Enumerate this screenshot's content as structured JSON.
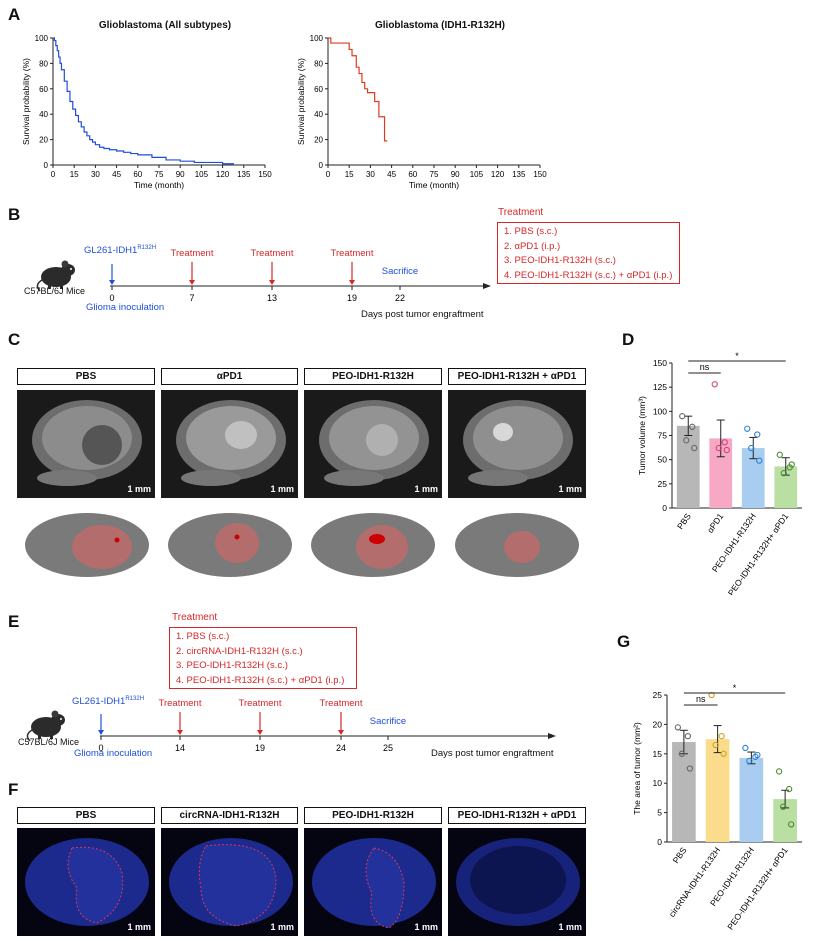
{
  "panels": {
    "A": "A",
    "B": "B",
    "C": "C",
    "D": "D",
    "E": "E",
    "F": "F",
    "G": "G"
  },
  "panel_A": {
    "left": {
      "title": "Glioblastoma (All subtypes)",
      "xlabel": "Time (month)",
      "ylabel": "Survival probability (%)"
    },
    "right": {
      "title": "Glioblastoma (IDH1-R132H)",
      "xlabel": "Time (month)",
      "ylabel": "Survival probability (%)"
    }
  },
  "panel_B": {
    "inoculation": "GL261-IDH1",
    "inoculation_sup": "R132H",
    "inoculation_label": "Glioma inoculation",
    "mouse_label": "C57BL/6J Mice",
    "treatment_label": "Treatment",
    "sacrifice_label": "Sacrifice",
    "ticks": [
      "0",
      "7",
      "13",
      "19",
      "22"
    ],
    "axis_label": "Days post tumor engraftment",
    "legend_title": "Treatment",
    "legend": [
      "1. PBS (s.c.)",
      "2. αPD1 (i.p.)",
      "3. PEO-IDH1-R132H (s.c.)",
      "4. PEO-IDH1-R132H (s.c.) + αPD1 (i.p.)"
    ]
  },
  "panel_C": {
    "groups": [
      "PBS",
      "αPD1",
      "PEO-IDH1-R132H",
      "PEO-IDH1-R132H + αPD1"
    ],
    "scale": "1 mm"
  },
  "panel_E": {
    "inoculation": "GL261-IDH1",
    "inoculation_sup": "R132H",
    "inoculation_label": "Glioma inoculation",
    "mouse_label": "C57BL/6J Mice",
    "treatment_label": "Treatment",
    "sacrifice_label": "Sacrifice",
    "ticks": [
      "0",
      "14",
      "19",
      "24",
      "25"
    ],
    "axis_label": "Days post tumor engraftment",
    "legend_title": "Treatment",
    "legend": [
      "1. PBS (s.c.)",
      "2. circRNA-IDH1-R132H (s.c.)",
      "3. PEO-IDH1-R132H (s.c.)",
      "4. PEO-IDH1-R132H (s.c.) + αPD1 (i.p.)"
    ]
  },
  "panel_F": {
    "groups": [
      "PBS",
      "circRNA-IDH1-R132H",
      "PEO-IDH1-R132H",
      "PEO-IDH1-R132H + αPD1"
    ],
    "scale": "1 mm"
  },
  "colors": {
    "blue": "#1f4fd8",
    "red": "#e03a1e",
    "legend_red": "#d62728",
    "gray": "#b7b7b7",
    "pink": "#f7a8c4",
    "lightblue": "#a9cdf1",
    "green": "#b9dfa3",
    "yellow": "#fbdc8c"
  },
  "chart_data": [
    {
      "id": "A-left",
      "type": "line",
      "title": "Glioblastoma (All subtypes)",
      "xlabel": "Time (month)",
      "ylabel": "Survival probability (%)",
      "xlim": [
        0,
        150
      ],
      "ylim": [
        0,
        100
      ],
      "xticks": [
        0,
        15,
        30,
        45,
        60,
        75,
        90,
        105,
        120,
        135,
        150
      ],
      "yticks": [
        0,
        20,
        40,
        60,
        80,
        100
      ],
      "series": [
        {
          "color": "#1f4fd8",
          "x": [
            0,
            1,
            2,
            3,
            4,
            5,
            6,
            8,
            10,
            12,
            14,
            16,
            18,
            20,
            22,
            24,
            26,
            28,
            30,
            33,
            36,
            40,
            45,
            50,
            55,
            60,
            70,
            80,
            90,
            100,
            110,
            120,
            128
          ],
          "y": [
            100,
            98,
            94,
            90,
            85,
            80,
            75,
            66,
            58,
            50,
            44,
            39,
            34,
            30,
            26,
            23,
            20,
            18,
            16,
            14,
            13,
            12,
            11,
            10,
            9,
            8,
            6,
            4,
            3,
            2,
            2,
            1,
            1
          ]
        }
      ]
    },
    {
      "id": "A-right",
      "type": "line",
      "title": "Glioblastoma (IDH1-R132H)",
      "xlabel": "Time (month)",
      "ylabel": "Survival probability (%)",
      "xlim": [
        0,
        150
      ],
      "ylim": [
        0,
        100
      ],
      "xticks": [
        0,
        15,
        30,
        45,
        60,
        75,
        90,
        105,
        120,
        135,
        150
      ],
      "yticks": [
        0,
        20,
        40,
        60,
        80,
        100
      ],
      "series": [
        {
          "color": "#e03a1e",
          "x": [
            0,
            2,
            2,
            15,
            15,
            17,
            17,
            20,
            20,
            22,
            22,
            24,
            24,
            26,
            26,
            28,
            28,
            33,
            33,
            36,
            36,
            40,
            40,
            42
          ],
          "y": [
            100,
            100,
            96,
            96,
            91,
            91,
            86,
            86,
            77,
            77,
            72,
            72,
            65,
            65,
            60,
            60,
            57,
            57,
            50,
            50,
            38,
            38,
            19,
            19
          ]
        }
      ]
    },
    {
      "id": "D",
      "type": "bar",
      "ylabel": "Tumor volume (mm³)",
      "categories": [
        "PBS",
        "αPD1",
        "PEO-IDH1-R132H",
        "PEO-IDH1-R132H+ αPD1"
      ],
      "values": [
        85,
        72,
        62,
        43
      ],
      "errors": [
        10,
        19,
        11,
        9
      ],
      "ylim": [
        0,
        150
      ],
      "yticks": [
        0,
        25,
        50,
        75,
        100,
        125,
        150
      ],
      "colors": [
        "#b7b7b7",
        "#f7a8c4",
        "#a9cdf1",
        "#b9dfa3"
      ],
      "points": [
        [
          95,
          84,
          70,
          62
        ],
        [
          128,
          68,
          62,
          60
        ],
        [
          82,
          76,
          62,
          49
        ],
        [
          55,
          42,
          36,
          45
        ]
      ],
      "annotations": [
        {
          "from": 0,
          "to": 1,
          "text": "ns"
        },
        {
          "from": 0,
          "to": 3,
          "text": "*"
        }
      ]
    },
    {
      "id": "G",
      "type": "bar",
      "ylabel": "The area of tumor (mm²)",
      "categories": [
        "PBS",
        "circRNA-IDH1-R132H",
        "PEO-IDH1-R132H",
        "PEO-IDH1-R132H+ αPD1"
      ],
      "values": [
        17,
        17.5,
        14.3,
        7.3
      ],
      "errors": [
        2,
        2.3,
        1,
        1.5
      ],
      "ylim": [
        0,
        25
      ],
      "yticks": [
        0,
        5,
        10,
        15,
        20,
        25
      ],
      "colors": [
        "#b7b7b7",
        "#fbdc8c",
        "#a9cdf1",
        "#b9dfa3"
      ],
      "points": [
        [
          19.5,
          18,
          15,
          12.5
        ],
        [
          25,
          18,
          16.5,
          15
        ],
        [
          16,
          14.5,
          13.8,
          14.8
        ],
        [
          12,
          9,
          6,
          3
        ]
      ],
      "annotations": [
        {
          "from": 0,
          "to": 1,
          "text": "ns"
        },
        {
          "from": 0,
          "to": 3,
          "text": "*"
        }
      ]
    }
  ]
}
